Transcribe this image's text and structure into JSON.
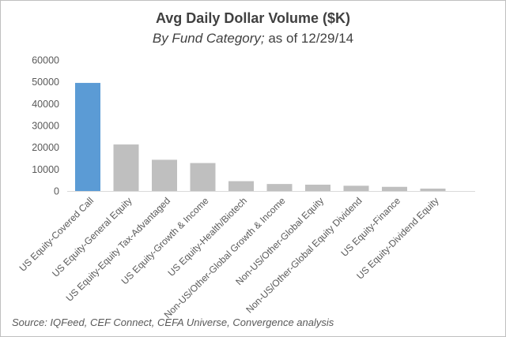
{
  "title": "Avg Daily Dollar Volume ($K)",
  "subtitle_italic": "By Fund Category;",
  "subtitle_rest": " as of 12/29/14",
  "source": "Source:  IQFeed, CEF Connect, CEFA Universe, Convergence analysis",
  "colors": {
    "highlight": "#5b9bd5",
    "bar": "#bfbfbf",
    "axis": "#d9d9d9",
    "text": "#595959"
  },
  "chart_data": {
    "type": "bar",
    "title": "Avg Daily Dollar Volume ($K)",
    "subtitle": "By Fund Category; as of 12/29/14",
    "categories": [
      "US Equity-Covered Call",
      "US Equity-General Equity",
      "US Equity-Equity Tax-Advantaged",
      "US Equity-Growth & Income",
      "US Equity-Health/Biotech",
      "Non-US/Other-Global Growth & Income",
      "Non-US/Other-Global Equity",
      "Non-US/Other-Global Equity Dividend",
      "US Equity-Finance",
      "US Equity-Dividend Equity"
    ],
    "values": [
      49500,
      21300,
      14300,
      12800,
      4500,
      3200,
      2900,
      2400,
      1900,
      1100
    ],
    "highlight_index": 0,
    "yticks": [
      0,
      10000,
      20000,
      30000,
      40000,
      50000,
      60000
    ],
    "ylim": [
      0,
      60000
    ],
    "xlabel": "",
    "ylabel": "",
    "grid": false,
    "legend": "none"
  }
}
